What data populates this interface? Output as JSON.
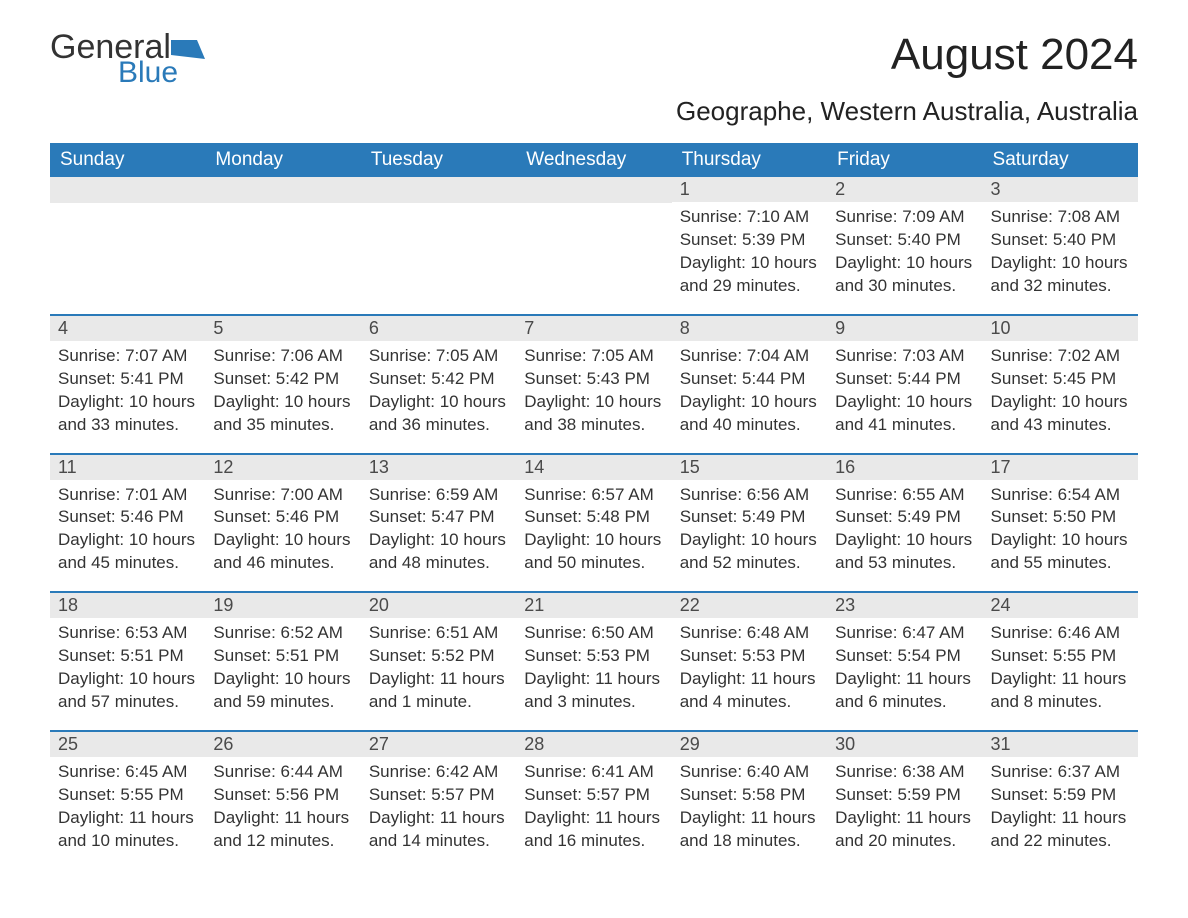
{
  "logo": {
    "main": "General",
    "sub": "Blue"
  },
  "title": "August 2024",
  "subtitle": "Geographe, Western Australia, Australia",
  "colors": {
    "header_bg": "#2a7ab9",
    "header_text": "#ffffff",
    "daynum_bg": "#e9e9e9",
    "border": "#2a7ab9",
    "body_text": "#333333",
    "logo_accent": "#2a7ab9"
  },
  "day_headers": [
    "Sunday",
    "Monday",
    "Tuesday",
    "Wednesday",
    "Thursday",
    "Friday",
    "Saturday"
  ],
  "weeks": [
    [
      null,
      null,
      null,
      null,
      {
        "n": "1",
        "sr": "Sunrise: 7:10 AM",
        "ss": "Sunset: 5:39 PM",
        "dl": "Daylight: 10 hours and 29 minutes."
      },
      {
        "n": "2",
        "sr": "Sunrise: 7:09 AM",
        "ss": "Sunset: 5:40 PM",
        "dl": "Daylight: 10 hours and 30 minutes."
      },
      {
        "n": "3",
        "sr": "Sunrise: 7:08 AM",
        "ss": "Sunset: 5:40 PM",
        "dl": "Daylight: 10 hours and 32 minutes."
      }
    ],
    [
      {
        "n": "4",
        "sr": "Sunrise: 7:07 AM",
        "ss": "Sunset: 5:41 PM",
        "dl": "Daylight: 10 hours and 33 minutes."
      },
      {
        "n": "5",
        "sr": "Sunrise: 7:06 AM",
        "ss": "Sunset: 5:42 PM",
        "dl": "Daylight: 10 hours and 35 minutes."
      },
      {
        "n": "6",
        "sr": "Sunrise: 7:05 AM",
        "ss": "Sunset: 5:42 PM",
        "dl": "Daylight: 10 hours and 36 minutes."
      },
      {
        "n": "7",
        "sr": "Sunrise: 7:05 AM",
        "ss": "Sunset: 5:43 PM",
        "dl": "Daylight: 10 hours and 38 minutes."
      },
      {
        "n": "8",
        "sr": "Sunrise: 7:04 AM",
        "ss": "Sunset: 5:44 PM",
        "dl": "Daylight: 10 hours and 40 minutes."
      },
      {
        "n": "9",
        "sr": "Sunrise: 7:03 AM",
        "ss": "Sunset: 5:44 PM",
        "dl": "Daylight: 10 hours and 41 minutes."
      },
      {
        "n": "10",
        "sr": "Sunrise: 7:02 AM",
        "ss": "Sunset: 5:45 PM",
        "dl": "Daylight: 10 hours and 43 minutes."
      }
    ],
    [
      {
        "n": "11",
        "sr": "Sunrise: 7:01 AM",
        "ss": "Sunset: 5:46 PM",
        "dl": "Daylight: 10 hours and 45 minutes."
      },
      {
        "n": "12",
        "sr": "Sunrise: 7:00 AM",
        "ss": "Sunset: 5:46 PM",
        "dl": "Daylight: 10 hours and 46 minutes."
      },
      {
        "n": "13",
        "sr": "Sunrise: 6:59 AM",
        "ss": "Sunset: 5:47 PM",
        "dl": "Daylight: 10 hours and 48 minutes."
      },
      {
        "n": "14",
        "sr": "Sunrise: 6:57 AM",
        "ss": "Sunset: 5:48 PM",
        "dl": "Daylight: 10 hours and 50 minutes."
      },
      {
        "n": "15",
        "sr": "Sunrise: 6:56 AM",
        "ss": "Sunset: 5:49 PM",
        "dl": "Daylight: 10 hours and 52 minutes."
      },
      {
        "n": "16",
        "sr": "Sunrise: 6:55 AM",
        "ss": "Sunset: 5:49 PM",
        "dl": "Daylight: 10 hours and 53 minutes."
      },
      {
        "n": "17",
        "sr": "Sunrise: 6:54 AM",
        "ss": "Sunset: 5:50 PM",
        "dl": "Daylight: 10 hours and 55 minutes."
      }
    ],
    [
      {
        "n": "18",
        "sr": "Sunrise: 6:53 AM",
        "ss": "Sunset: 5:51 PM",
        "dl": "Daylight: 10 hours and 57 minutes."
      },
      {
        "n": "19",
        "sr": "Sunrise: 6:52 AM",
        "ss": "Sunset: 5:51 PM",
        "dl": "Daylight: 10 hours and 59 minutes."
      },
      {
        "n": "20",
        "sr": "Sunrise: 6:51 AM",
        "ss": "Sunset: 5:52 PM",
        "dl": "Daylight: 11 hours and 1 minute."
      },
      {
        "n": "21",
        "sr": "Sunrise: 6:50 AM",
        "ss": "Sunset: 5:53 PM",
        "dl": "Daylight: 11 hours and 3 minutes."
      },
      {
        "n": "22",
        "sr": "Sunrise: 6:48 AM",
        "ss": "Sunset: 5:53 PM",
        "dl": "Daylight: 11 hours and 4 minutes."
      },
      {
        "n": "23",
        "sr": "Sunrise: 6:47 AM",
        "ss": "Sunset: 5:54 PM",
        "dl": "Daylight: 11 hours and 6 minutes."
      },
      {
        "n": "24",
        "sr": "Sunrise: 6:46 AM",
        "ss": "Sunset: 5:55 PM",
        "dl": "Daylight: 11 hours and 8 minutes."
      }
    ],
    [
      {
        "n": "25",
        "sr": "Sunrise: 6:45 AM",
        "ss": "Sunset: 5:55 PM",
        "dl": "Daylight: 11 hours and 10 minutes."
      },
      {
        "n": "26",
        "sr": "Sunrise: 6:44 AM",
        "ss": "Sunset: 5:56 PM",
        "dl": "Daylight: 11 hours and 12 minutes."
      },
      {
        "n": "27",
        "sr": "Sunrise: 6:42 AM",
        "ss": "Sunset: 5:57 PM",
        "dl": "Daylight: 11 hours and 14 minutes."
      },
      {
        "n": "28",
        "sr": "Sunrise: 6:41 AM",
        "ss": "Sunset: 5:57 PM",
        "dl": "Daylight: 11 hours and 16 minutes."
      },
      {
        "n": "29",
        "sr": "Sunrise: 6:40 AM",
        "ss": "Sunset: 5:58 PM",
        "dl": "Daylight: 11 hours and 18 minutes."
      },
      {
        "n": "30",
        "sr": "Sunrise: 6:38 AM",
        "ss": "Sunset: 5:59 PM",
        "dl": "Daylight: 11 hours and 20 minutes."
      },
      {
        "n": "31",
        "sr": "Sunrise: 6:37 AM",
        "ss": "Sunset: 5:59 PM",
        "dl": "Daylight: 11 hours and 22 minutes."
      }
    ]
  ]
}
